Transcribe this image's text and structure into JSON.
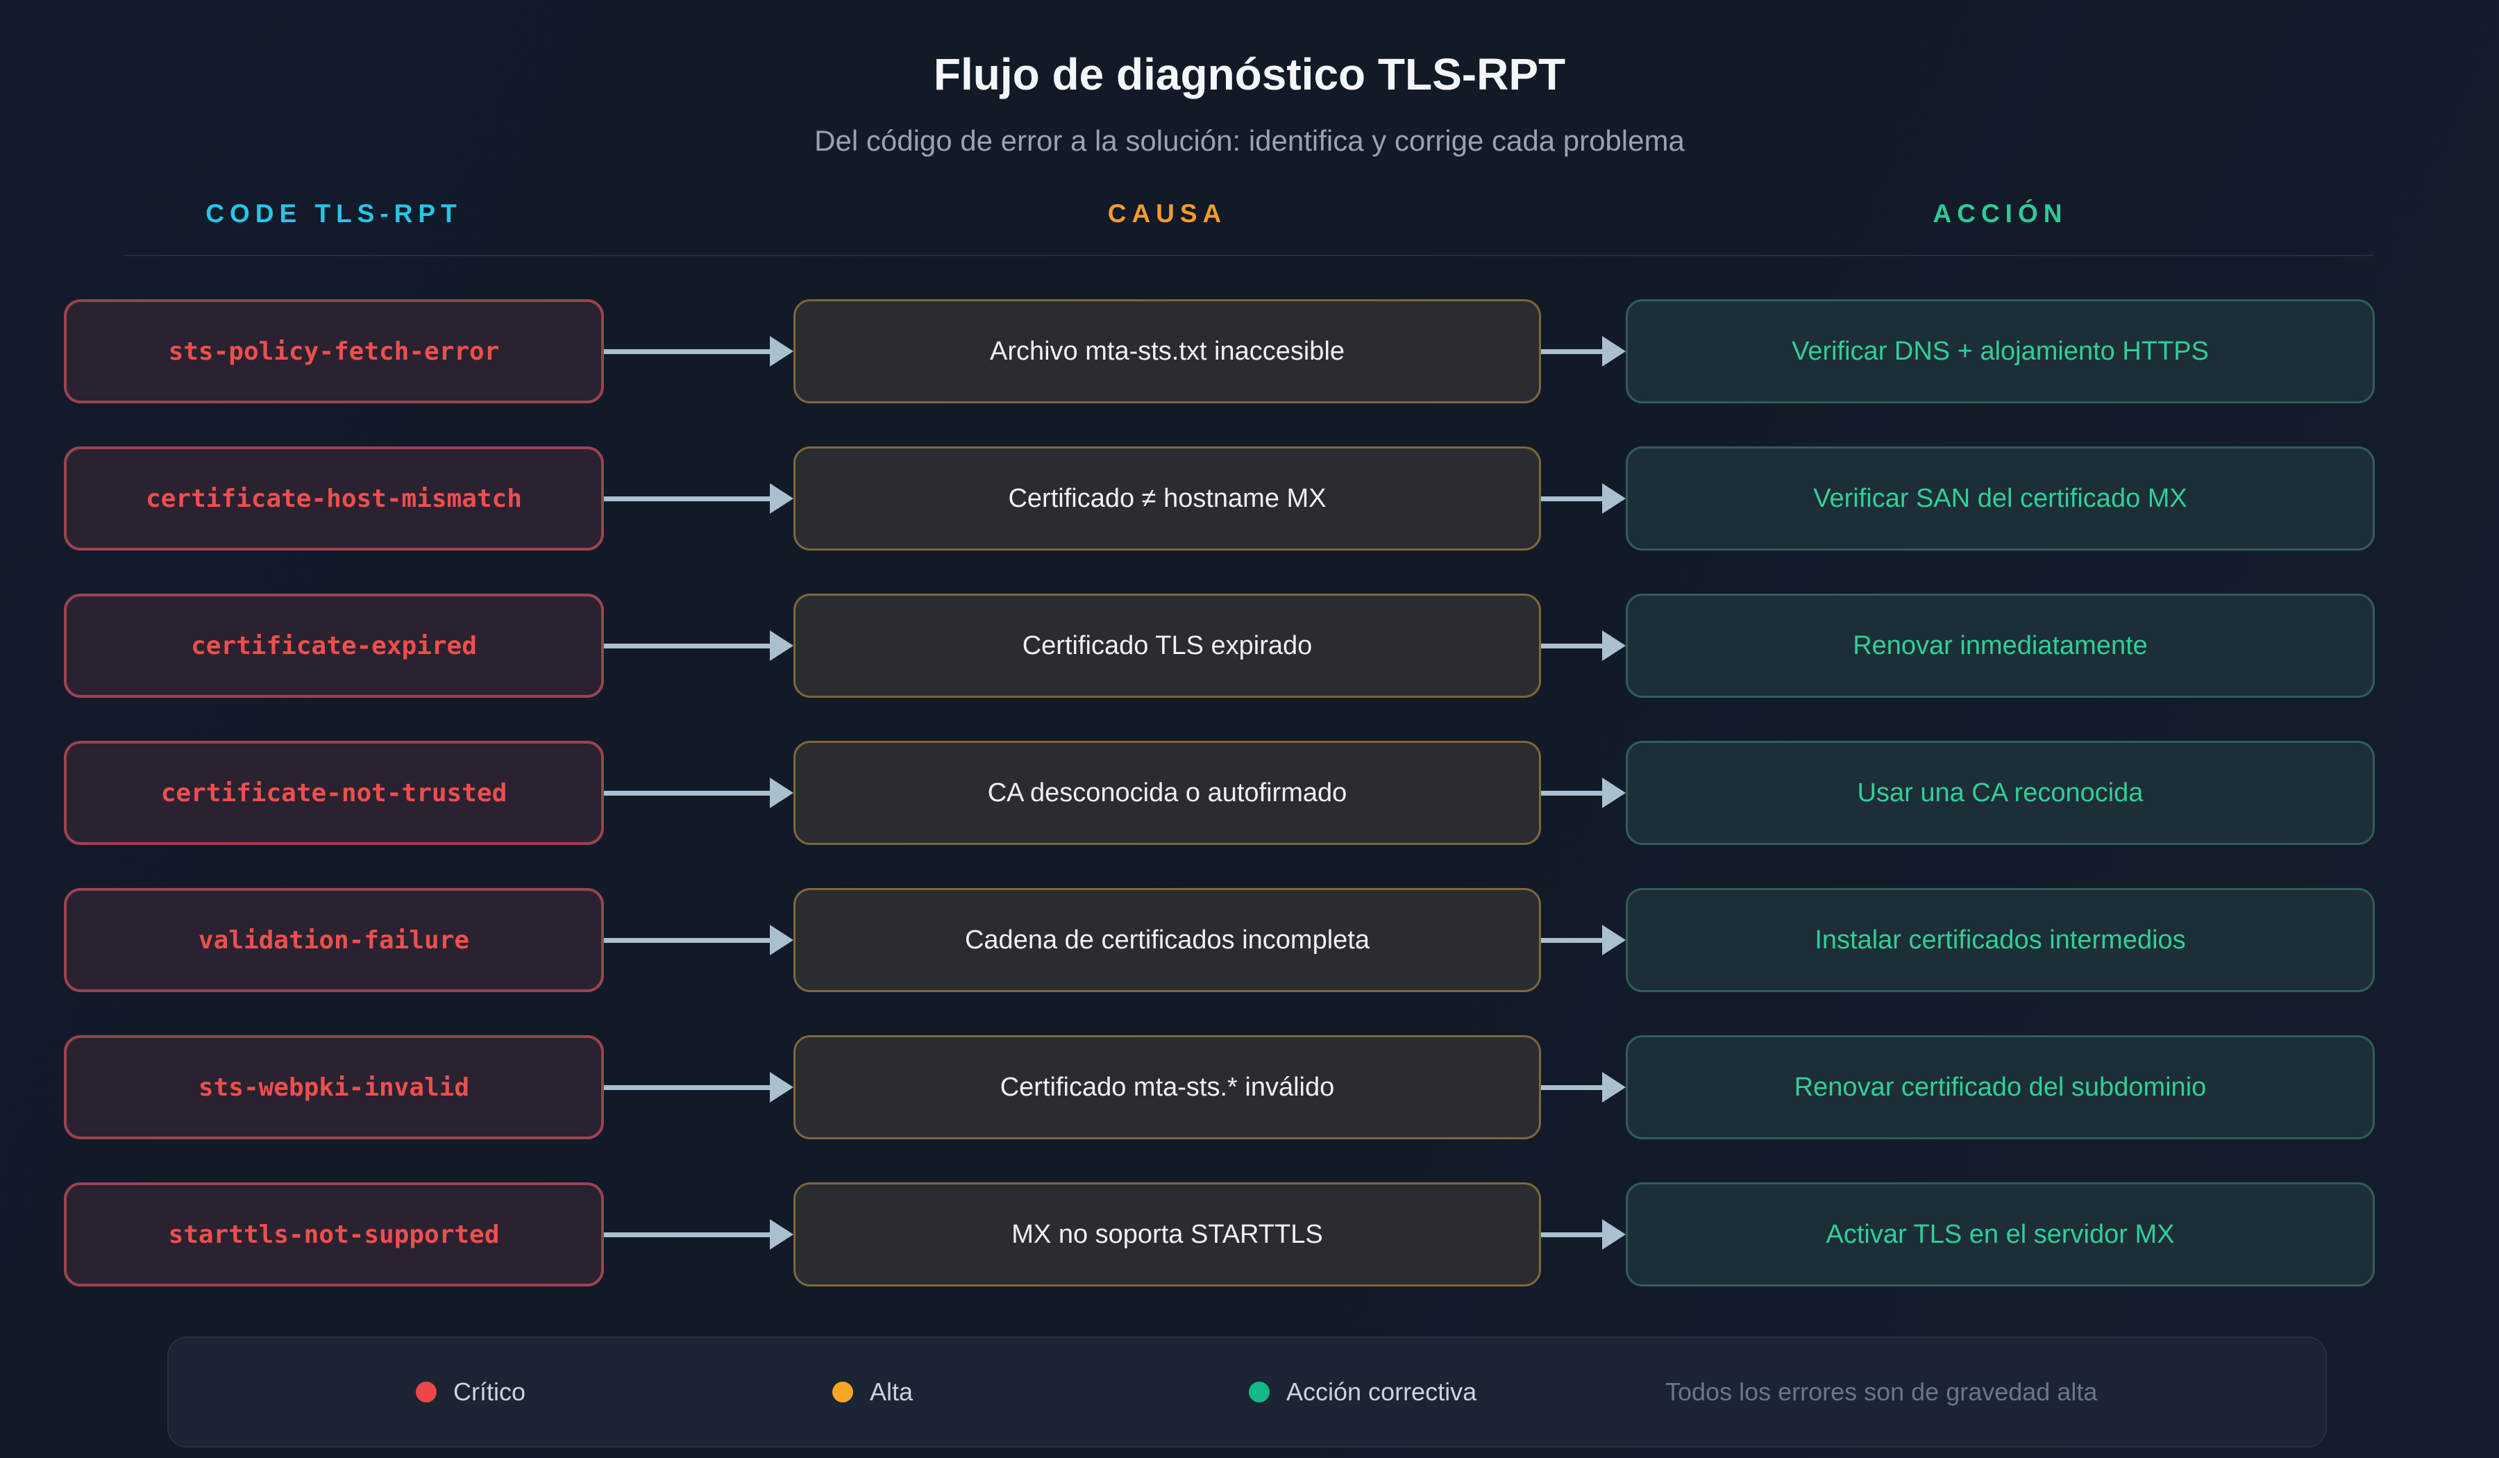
{
  "page": {
    "title": "Flujo de diagnóstico TLS-RPT",
    "subtitle": "Del código de error a la solución: identifica y corrige cada problema"
  },
  "columns": [
    {
      "label": "CODE TLS-RPT",
      "color": "#26c6e8"
    },
    {
      "label": "CAUSA",
      "color": "#f39c2d"
    },
    {
      "label": "ACCIÓN",
      "color": "#2dcb96"
    }
  ],
  "rows": [
    {
      "code": "sts-policy-fetch-error",
      "cause": "Archivo mta-sts.txt inaccesible",
      "action": "Verificar DNS + alojamiento HTTPS"
    },
    {
      "code": "certificate-host-mismatch",
      "cause": "Certificado ≠ hostname MX",
      "action": "Verificar SAN del certificado MX"
    },
    {
      "code": "certificate-expired",
      "cause": "Certificado TLS expirado",
      "action": "Renovar inmediatamente"
    },
    {
      "code": "certificate-not-trusted",
      "cause": "CA desconocida o autofirmado",
      "action": "Usar una CA reconocida"
    },
    {
      "code": "validation-failure",
      "cause": "Cadena de certificados incompleta",
      "action": "Instalar certificados intermedios"
    },
    {
      "code": "sts-webpki-invalid",
      "cause": "Certificado mta-sts.* inválido",
      "action": "Renovar certificado del subdominio"
    },
    {
      "code": "starttls-not-supported",
      "cause": "MX no soporta STARTTLS",
      "action": "Activar TLS en el servidor MX"
    }
  ],
  "legend": {
    "items": [
      {
        "label": "Crítico",
        "color": "#ef4747"
      },
      {
        "label": "Alta",
        "color": "#f5a623"
      },
      {
        "label": "Acción correctiva",
        "color": "#12b886"
      }
    ],
    "note": "Todos los errores son de gravedad alta"
  },
  "colors": {
    "background": "#131b2a",
    "code_box_border": "#9c4350",
    "code_box_bg": "#2a2230",
    "code_text": "#ef4e4e",
    "cause_box_border": "#80663a",
    "cause_box_bg": "#2a2c31",
    "cause_text": "#eef1f5",
    "action_box_border": "#2e5f59",
    "action_box_bg": "#1d2e38",
    "action_text": "#2fd096",
    "arrow": "#a9c0cf"
  }
}
